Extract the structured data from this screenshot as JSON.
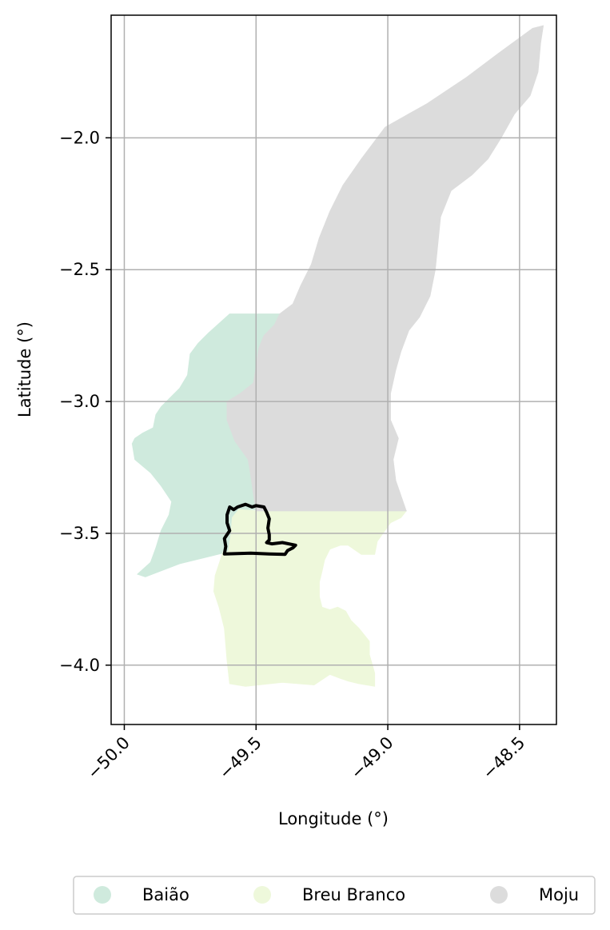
{
  "chart_data": {
    "type": "map",
    "xlabel": "Longitude (°)",
    "ylabel": "Latitude (°)",
    "xlim": [
      -50.05,
      -48.36
    ],
    "ylim": [
      -4.225,
      -1.535
    ],
    "grid": true,
    "legend_placement": "bottom-center",
    "x_ticks": [
      {
        "value": -50.0,
        "label": "−50.0"
      },
      {
        "value": -49.5,
        "label": "−49.5"
      },
      {
        "value": -49.0,
        "label": "−49.0"
      },
      {
        "value": -48.5,
        "label": "−48.5"
      }
    ],
    "y_ticks": [
      {
        "value": -2.0,
        "label": "−2.0"
      },
      {
        "value": -2.5,
        "label": "−2.5"
      },
      {
        "value": -3.0,
        "label": "−3.0"
      },
      {
        "value": -3.5,
        "label": "−3.5"
      },
      {
        "value": -4.0,
        "label": "−4.0"
      }
    ],
    "regions": [
      {
        "name": "Baião",
        "color": "#cfeadd",
        "outline": [
          [
            -49.6,
            -2.668
          ],
          [
            -49.41,
            -2.668
          ],
          [
            -49.43,
            -2.71
          ],
          [
            -49.47,
            -2.75
          ],
          [
            -49.49,
            -2.8
          ],
          [
            -49.5,
            -2.87
          ],
          [
            -49.51,
            -2.93
          ],
          [
            -49.56,
            -2.97
          ],
          [
            -49.61,
            -3.0
          ],
          [
            -49.61,
            -3.07
          ],
          [
            -49.58,
            -3.15
          ],
          [
            -49.53,
            -3.22
          ],
          [
            -49.52,
            -3.28
          ],
          [
            -49.51,
            -3.35
          ],
          [
            -49.5,
            -3.41
          ],
          [
            -49.53,
            -3.41
          ],
          [
            -49.565,
            -3.41
          ],
          [
            -49.59,
            -3.44
          ],
          [
            -49.595,
            -3.5
          ],
          [
            -49.605,
            -3.57
          ],
          [
            -49.79,
            -3.615
          ],
          [
            -49.92,
            -3.665
          ],
          [
            -49.95,
            -3.655
          ],
          [
            -49.9,
            -3.61
          ],
          [
            -49.88,
            -3.555
          ],
          [
            -49.86,
            -3.49
          ],
          [
            -49.83,
            -3.43
          ],
          [
            -49.82,
            -3.38
          ],
          [
            -49.86,
            -3.32
          ],
          [
            -49.9,
            -3.27
          ],
          [
            -49.96,
            -3.22
          ],
          [
            -49.97,
            -3.16
          ],
          [
            -49.96,
            -3.14
          ],
          [
            -49.93,
            -3.12
          ],
          [
            -49.89,
            -3.1
          ],
          [
            -49.88,
            -3.05
          ],
          [
            -49.86,
            -3.02
          ],
          [
            -49.82,
            -2.98
          ],
          [
            -49.79,
            -2.95
          ],
          [
            -49.76,
            -2.9
          ],
          [
            -49.75,
            -2.82
          ],
          [
            -49.72,
            -2.78
          ],
          [
            -49.68,
            -2.74
          ]
        ]
      },
      {
        "name": "Breu Branco",
        "color": "#eef8db",
        "outline": [
          [
            -49.5,
            -3.415
          ],
          [
            -48.93,
            -3.415
          ],
          [
            -48.95,
            -3.44
          ],
          [
            -48.99,
            -3.46
          ],
          [
            -49.04,
            -3.53
          ],
          [
            -49.05,
            -3.58
          ],
          [
            -49.1,
            -3.58
          ],
          [
            -49.15,
            -3.545
          ],
          [
            -49.18,
            -3.545
          ],
          [
            -49.22,
            -3.56
          ],
          [
            -49.24,
            -3.6
          ],
          [
            -49.25,
            -3.645
          ],
          [
            -49.26,
            -3.685
          ],
          [
            -49.26,
            -3.74
          ],
          [
            -49.25,
            -3.78
          ],
          [
            -49.22,
            -3.79
          ],
          [
            -49.19,
            -3.78
          ],
          [
            -49.16,
            -3.795
          ],
          [
            -49.14,
            -3.83
          ],
          [
            -49.11,
            -3.86
          ],
          [
            -49.07,
            -3.91
          ],
          [
            -49.07,
            -3.96
          ],
          [
            -49.05,
            -4.03
          ],
          [
            -49.05,
            -4.08
          ],
          [
            -49.11,
            -4.07
          ],
          [
            -49.15,
            -4.06
          ],
          [
            -49.18,
            -4.05
          ],
          [
            -49.22,
            -4.035
          ],
          [
            -49.28,
            -4.075
          ],
          [
            -49.4,
            -4.065
          ],
          [
            -49.54,
            -4.08
          ],
          [
            -49.6,
            -4.07
          ],
          [
            -49.61,
            -3.98
          ],
          [
            -49.62,
            -3.86
          ],
          [
            -49.64,
            -3.78
          ],
          [
            -49.66,
            -3.72
          ],
          [
            -49.655,
            -3.66
          ],
          [
            -49.625,
            -3.57
          ],
          [
            -49.605,
            -3.57
          ],
          [
            -49.595,
            -3.5
          ],
          [
            -49.59,
            -3.44
          ],
          [
            -49.565,
            -3.41
          ]
        ]
      },
      {
        "name": "Moju",
        "color": "#dcdcdc",
        "outline": [
          [
            -48.45,
            -1.585
          ],
          [
            -48.41,
            -1.575
          ],
          [
            -48.42,
            -1.64
          ],
          [
            -48.43,
            -1.75
          ],
          [
            -48.46,
            -1.84
          ],
          [
            -48.52,
            -1.91
          ],
          [
            -48.57,
            -2.0
          ],
          [
            -48.62,
            -2.08
          ],
          [
            -48.68,
            -2.14
          ],
          [
            -48.76,
            -2.2
          ],
          [
            -48.8,
            -2.3
          ],
          [
            -48.81,
            -2.4
          ],
          [
            -48.82,
            -2.5
          ],
          [
            -48.84,
            -2.6
          ],
          [
            -48.88,
            -2.68
          ],
          [
            -48.92,
            -2.73
          ],
          [
            -48.95,
            -2.81
          ],
          [
            -48.97,
            -2.88
          ],
          [
            -48.99,
            -2.97
          ],
          [
            -48.99,
            -3.07
          ],
          [
            -48.96,
            -3.14
          ],
          [
            -48.98,
            -3.22
          ],
          [
            -48.97,
            -3.3
          ],
          [
            -48.93,
            -3.415
          ],
          [
            -49.5,
            -3.415
          ],
          [
            -49.51,
            -3.35
          ],
          [
            -49.52,
            -3.28
          ],
          [
            -49.53,
            -3.22
          ],
          [
            -49.58,
            -3.15
          ],
          [
            -49.61,
            -3.07
          ],
          [
            -49.61,
            -3.0
          ],
          [
            -49.56,
            -2.97
          ],
          [
            -49.51,
            -2.93
          ],
          [
            -49.5,
            -2.87
          ],
          [
            -49.49,
            -2.8
          ],
          [
            -49.47,
            -2.75
          ],
          [
            -49.43,
            -2.71
          ],
          [
            -49.41,
            -2.668
          ],
          [
            -49.36,
            -2.63
          ],
          [
            -49.33,
            -2.56
          ],
          [
            -49.29,
            -2.48
          ],
          [
            -49.26,
            -2.38
          ],
          [
            -49.22,
            -2.28
          ],
          [
            -49.17,
            -2.18
          ],
          [
            -49.1,
            -2.08
          ],
          [
            -49.01,
            -1.96
          ],
          [
            -48.85,
            -1.87
          ],
          [
            -48.7,
            -1.77
          ],
          [
            -48.58,
            -1.68
          ]
        ]
      }
    ],
    "highlight_outline": {
      "color": "#000000",
      "outline": [
        [
          -49.6,
          -3.4
        ],
        [
          -49.585,
          -3.41
        ],
        [
          -49.57,
          -3.4
        ],
        [
          -49.54,
          -3.39
        ],
        [
          -49.515,
          -3.4
        ],
        [
          -49.5,
          -3.395
        ],
        [
          -49.47,
          -3.4
        ],
        [
          -49.46,
          -3.42
        ],
        [
          -49.45,
          -3.445
        ],
        [
          -49.455,
          -3.48
        ],
        [
          -49.45,
          -3.505
        ],
        [
          -49.45,
          -3.525
        ],
        [
          -49.46,
          -3.535
        ],
        [
          -49.44,
          -3.54
        ],
        [
          -49.4,
          -3.535
        ],
        [
          -49.35,
          -3.545
        ],
        [
          -49.36,
          -3.555
        ],
        [
          -49.38,
          -3.565
        ],
        [
          -49.39,
          -3.58
        ],
        [
          -49.45,
          -3.578
        ],
        [
          -49.52,
          -3.575
        ],
        [
          -49.62,
          -3.578
        ],
        [
          -49.615,
          -3.55
        ],
        [
          -49.62,
          -3.52
        ],
        [
          -49.6,
          -3.49
        ],
        [
          -49.61,
          -3.46
        ],
        [
          -49.61,
          -3.43
        ]
      ]
    },
    "legend": [
      {
        "label": "Baião",
        "color": "#cfeadd"
      },
      {
        "label": "Breu Branco",
        "color": "#eef8db"
      },
      {
        "label": "Moju",
        "color": "#dcdcdc"
      }
    ]
  }
}
